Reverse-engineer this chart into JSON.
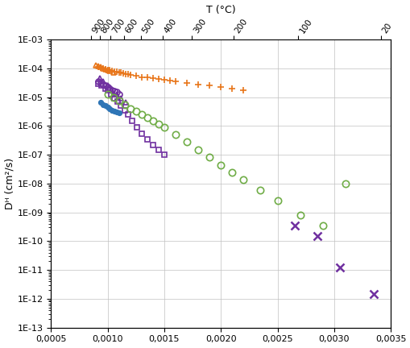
{
  "title_top": "T (°C)",
  "ylabel": "Dᴴ (cm²/s)",
  "xlim": [
    0.0005,
    0.0035
  ],
  "ylim_log_min": -13,
  "ylim_log_max": -3,
  "top_ticks_T": [
    900,
    800,
    700,
    600,
    500,
    400,
    300,
    200,
    100,
    20
  ],
  "series": {
    "orange_plus": {
      "color": "#E8761A",
      "marker": "+",
      "markersize": 6,
      "x": [
        0.00092,
        0.00094,
        0.00096,
        0.00098,
        0.001,
        0.00102,
        0.00104,
        0.00106,
        0.00108,
        0.0011,
        0.00112,
        0.00114,
        0.00116,
        0.00118,
        0.0012,
        0.00125,
        0.0013,
        0.00135,
        0.0014,
        0.00145,
        0.0015,
        0.00155,
        0.0016,
        0.0017,
        0.0018,
        0.0019,
        0.002,
        0.0021,
        0.0022
      ],
      "y": [
        0.00011,
        0.000105,
        0.0001,
        9.5e-05,
        9e-05,
        8.5e-05,
        8.2e-05,
        7.8e-05,
        7.5e-05,
        7.2e-05,
        7e-05,
        6.7e-05,
        6.5e-05,
        6.3e-05,
        6e-05,
        5.5e-05,
        5e-05,
        4.8e-05,
        4.5e-05,
        4.2e-05,
        4e-05,
        3.8e-05,
        3.5e-05,
        3.2e-05,
        2.8e-05,
        2.5e-05,
        2.3e-05,
        2e-05,
        1.8e-05
      ]
    },
    "orange_triangle": {
      "color": "#E8761A",
      "marker": "^",
      "markersize": 5,
      "facecolor": "none",
      "x": [
        0.0009,
        0.00092,
        0.00094,
        0.00096,
        0.00098,
        0.001,
        0.00102,
        0.00105
      ],
      "y": [
        0.00013,
        0.00012,
        0.00011,
        0.0001,
        9.5e-05,
        9e-05,
        8e-05,
        7e-05
      ]
    },
    "purple_circle": {
      "color": "#7030A0",
      "marker": "o",
      "markersize": 5,
      "facecolor": "none",
      "x": [
        0.00092,
        0.00094,
        0.00096,
        0.00098,
        0.001,
        0.00102,
        0.00104,
        0.00106,
        0.00108,
        0.0011
      ],
      "y": [
        3.5e-05,
        3.2e-05,
        2.8e-05,
        2.5e-05,
        2.2e-05,
        2e-05,
        1.8e-05,
        1.6e-05,
        1.5e-05,
        1.3e-05
      ]
    },
    "purple_square": {
      "color": "#7030A0",
      "marker": "s",
      "markersize": 5,
      "facecolor": "none",
      "x": [
        0.00092,
        0.00095,
        0.00098,
        0.001,
        0.00103,
        0.00106,
        0.00109,
        0.00112,
        0.00115,
        0.00118,
        0.00122,
        0.00126,
        0.0013,
        0.00135,
        0.0014,
        0.00145,
        0.0015
      ],
      "y": [
        3e-05,
        2.5e-05,
        2e-05,
        1.7e-05,
        1.3e-05,
        9e-06,
        7e-06,
        5e-06,
        3.5e-06,
        2.5e-06,
        1.5e-06,
        9e-07,
        5.5e-07,
        3.5e-07,
        2.2e-07,
        1.5e-07,
        1e-07
      ]
    },
    "purple_triangle": {
      "color": "#7030A0",
      "marker": "^",
      "markersize": 5,
      "facecolor": "none",
      "x": [
        0.00093,
        0.00096,
        0.001,
        0.00104,
        0.00108,
        0.00112,
        0.00116
      ],
      "y": [
        4.5e-05,
        3.5e-05,
        2.5e-05,
        1.8e-05,
        1.3e-05,
        9e-06,
        6.5e-06
      ]
    },
    "blue_dot": {
      "color": "#2E75B6",
      "marker": "o",
      "markersize": 4,
      "facecolor": "#2E75B6",
      "x": [
        0.00094,
        0.00096,
        0.00098,
        0.001,
        0.00102,
        0.00104,
        0.00106,
        0.00108,
        0.0011
      ],
      "y": [
        6.5e-06,
        5.5e-06,
        5e-06,
        4.5e-06,
        4e-06,
        3.5e-06,
        3.2e-06,
        3e-06,
        2.8e-06
      ]
    },
    "green_circle": {
      "color": "#70AD47",
      "marker": "o",
      "markersize": 6,
      "facecolor": "none",
      "x": [
        0.001,
        0.00105,
        0.0011,
        0.00115,
        0.0012,
        0.00125,
        0.0013,
        0.00135,
        0.0014,
        0.00145,
        0.0015,
        0.0016,
        0.0017,
        0.0018,
        0.0019,
        0.002,
        0.0021,
        0.0022,
        0.00235,
        0.0025,
        0.0027,
        0.0029,
        0.0031
      ],
      "y": [
        1.3e-05,
        9.5e-06,
        7.5e-06,
        5.5e-06,
        4e-06,
        3.2e-06,
        2.5e-06,
        2e-06,
        1.5e-06,
        1.2e-06,
        9e-07,
        5e-07,
        2.8e-07,
        1.5e-07,
        8.5e-08,
        4.5e-08,
        2.5e-08,
        1.4e-08,
        6e-09,
        2.5e-09,
        8e-10,
        3.5e-10,
        1e-08
      ]
    },
    "purple_x": {
      "color": "#7030A0",
      "marker": "x",
      "markersize": 7,
      "x": [
        0.00265,
        0.00285,
        0.00305,
        0.00335
      ],
      "y": [
        3.5e-10,
        1.5e-10,
        1.2e-11,
        1.5e-12
      ]
    }
  },
  "background_color": "#FFFFFF",
  "grid_color": "#C0C0C0"
}
